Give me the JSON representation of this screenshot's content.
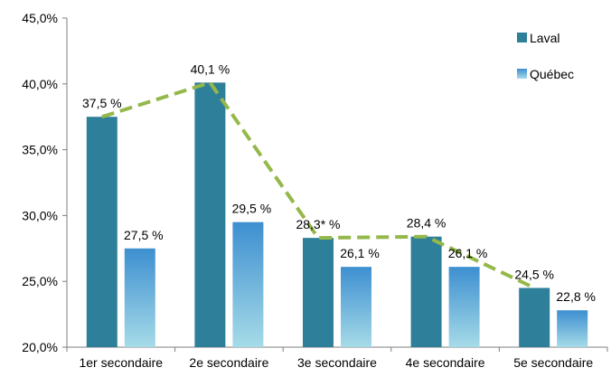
{
  "chart_data": {
    "type": "bar",
    "categories": [
      "1er secondaire",
      "2e secondaire",
      "3e secondaire",
      "4e secondaire",
      "5e secondaire"
    ],
    "series": [
      {
        "name": "Laval",
        "values": [
          37.5,
          40.1,
          28.3,
          28.4,
          24.5
        ],
        "labels": [
          "37,5 %",
          "40,1 %",
          "28,3* %",
          "28,4 %",
          "24,5 %"
        ],
        "color": "#2e7f99"
      },
      {
        "name": "Québec",
        "values": [
          27.5,
          29.5,
          26.1,
          26.1,
          22.8
        ],
        "labels": [
          "27,5 %",
          "29,5 %",
          "26,1 %",
          "26,1 %",
          "22,8 %"
        ],
        "color_top": "#3d8fd0",
        "color_bottom": "#a6dbe8"
      }
    ],
    "trend_line": {
      "series": "Laval",
      "style": "dashed",
      "color": "#94b84a"
    },
    "y_ticks": [
      "20,0%",
      "25,0%",
      "30,0%",
      "35,0%",
      "40,0%",
      "45,0%"
    ],
    "ylim": [
      20,
      45
    ],
    "legend_position": "top-right",
    "grid": false
  }
}
